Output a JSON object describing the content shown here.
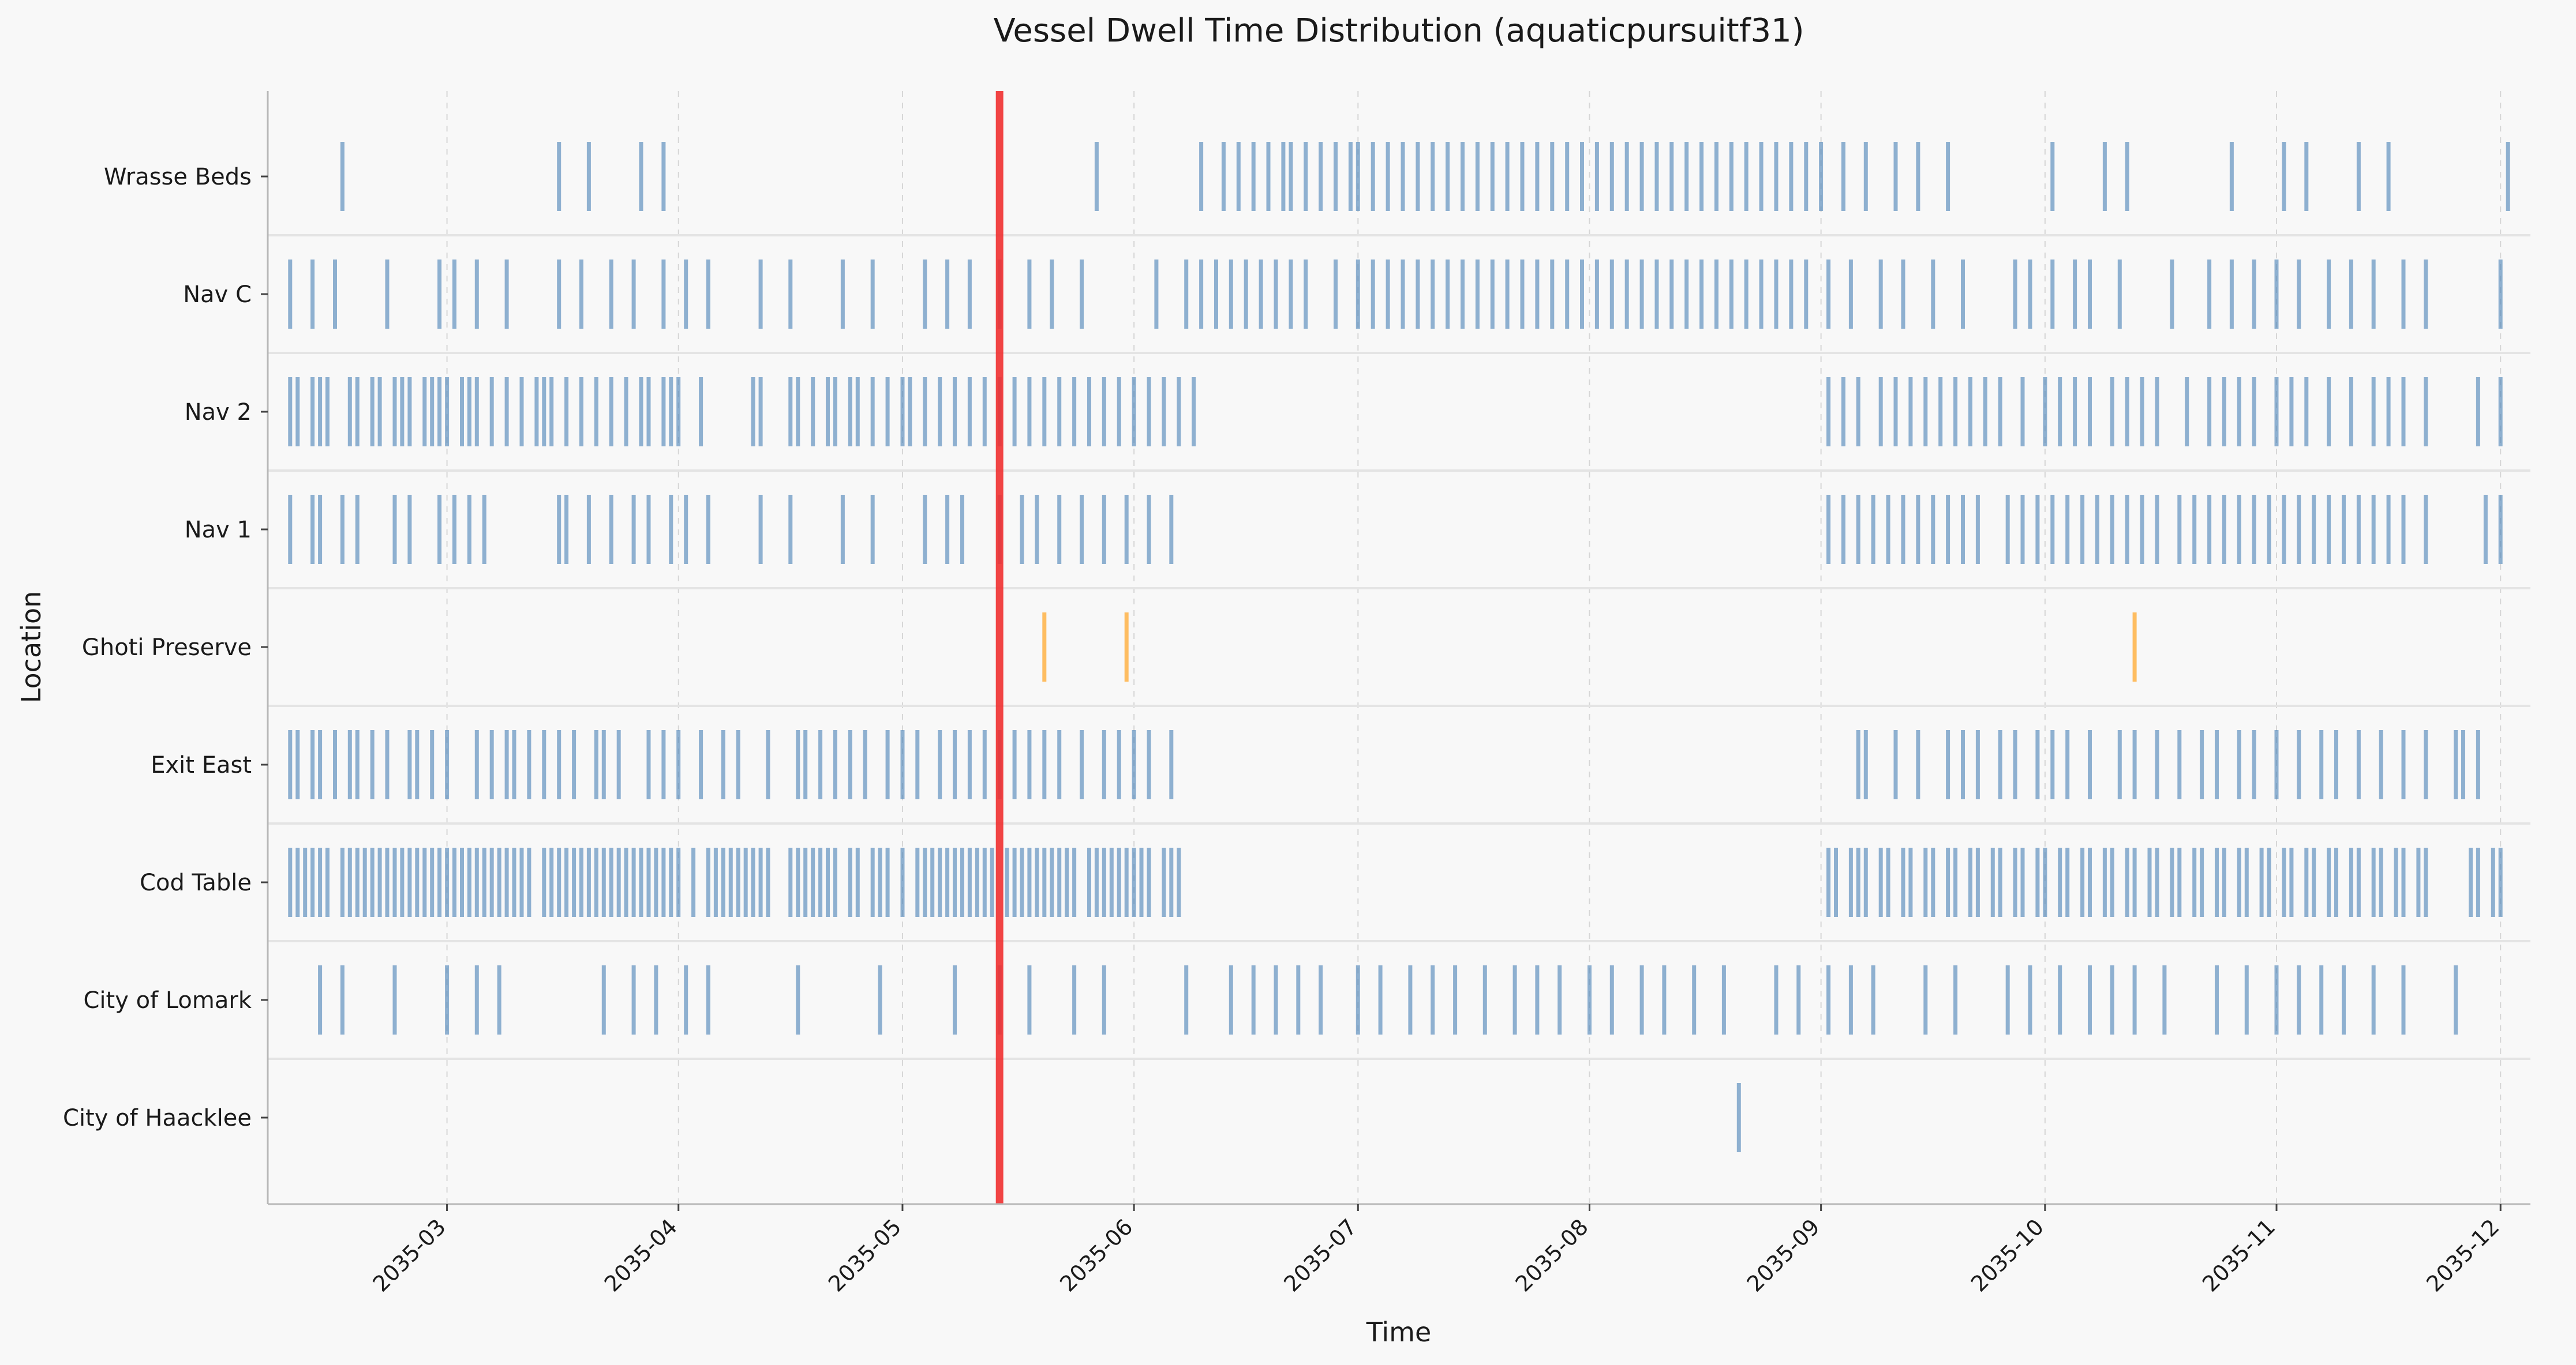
{
  "chart_data": {
    "type": "timeline",
    "title": "Vessel Dwell Time Distribution (aquaticpursuitf31)",
    "xlabel": "Time",
    "ylabel": "Location",
    "x_range": [
      "2035-02-05",
      "2035-12-05"
    ],
    "x_tick_labels": [
      "2035-03",
      "2035-04",
      "2035-05",
      "2035-06",
      "2035-07",
      "2035-08",
      "2035-09",
      "2035-10",
      "2035-11",
      "2035-12"
    ],
    "categories": [
      "Wrasse Beds",
      "Nav C",
      "Nav 2",
      "Nav 1",
      "Ghoti Preserve",
      "Exit East",
      "Cod Table",
      "City of Lomark",
      "City of Haacklee"
    ],
    "grid": "vertical dashed at month ticks",
    "legend": "none",
    "colors": {
      "regular": "#4e84b8",
      "highlight": "#ffb347",
      "marker": "#f03030",
      "background": "#f8f8f8"
    },
    "marker_line": {
      "date": "2035-05-14"
    },
    "series": [
      {
        "category": "Wrasse Beds",
        "color": "regular",
        "visits": [
          "2035-02-15",
          "2035-03-16",
          "2035-03-20",
          "2035-03-27",
          "2035-03-30",
          "2035-05-27",
          "2035-06-10",
          "2035-06-13",
          "2035-06-15",
          "2035-06-17",
          "2035-06-19",
          "2035-06-21",
          "2035-06-22",
          "2035-06-24",
          "2035-06-26",
          "2035-06-28",
          "2035-06-30",
          "2035-07-01",
          "2035-07-03",
          "2035-07-05",
          "2035-07-07",
          "2035-07-09",
          "2035-07-11",
          "2035-07-13",
          "2035-07-15",
          "2035-07-17",
          "2035-07-19",
          "2035-07-21",
          "2035-07-23",
          "2035-07-25",
          "2035-07-27",
          "2035-07-29",
          "2035-07-31",
          "2035-08-02",
          "2035-08-04",
          "2035-08-06",
          "2035-08-08",
          "2035-08-10",
          "2035-08-12",
          "2035-08-14",
          "2035-08-16",
          "2035-08-18",
          "2035-08-20",
          "2035-08-22",
          "2035-08-24",
          "2035-08-26",
          "2035-08-28",
          "2035-08-30",
          "2035-09-01",
          "2035-09-04",
          "2035-09-07",
          "2035-09-11",
          "2035-09-14",
          "2035-09-18",
          "2035-10-02",
          "2035-10-09",
          "2035-10-12",
          "2035-10-26",
          "2035-11-02",
          "2035-11-05",
          "2035-11-12",
          "2035-11-16",
          "2035-12-02"
        ]
      },
      {
        "category": "Nav C",
        "color": "regular",
        "visits": [
          "2035-02-08",
          "2035-02-11",
          "2035-02-14",
          "2035-02-21",
          "2035-02-28",
          "2035-03-02",
          "2035-03-05",
          "2035-03-09",
          "2035-03-16",
          "2035-03-19",
          "2035-03-23",
          "2035-03-26",
          "2035-03-30",
          "2035-04-02",
          "2035-04-05",
          "2035-04-12",
          "2035-04-16",
          "2035-04-23",
          "2035-04-27",
          "2035-05-04",
          "2035-05-07",
          "2035-05-10",
          "2035-05-14",
          "2035-05-18",
          "2035-05-21",
          "2035-05-25",
          "2035-06-04",
          "2035-06-08",
          "2035-06-10",
          "2035-06-12",
          "2035-06-14",
          "2035-06-16",
          "2035-06-18",
          "2035-06-20",
          "2035-06-22",
          "2035-06-24",
          "2035-06-28",
          "2035-07-01",
          "2035-07-03",
          "2035-07-05",
          "2035-07-07",
          "2035-07-09",
          "2035-07-11",
          "2035-07-13",
          "2035-07-15",
          "2035-07-17",
          "2035-07-19",
          "2035-07-21",
          "2035-07-23",
          "2035-07-25",
          "2035-07-27",
          "2035-07-29",
          "2035-07-31",
          "2035-08-02",
          "2035-08-04",
          "2035-08-06",
          "2035-08-08",
          "2035-08-10",
          "2035-08-12",
          "2035-08-14",
          "2035-08-16",
          "2035-08-18",
          "2035-08-20",
          "2035-08-22",
          "2035-08-24",
          "2035-08-26",
          "2035-08-28",
          "2035-08-30",
          "2035-09-02",
          "2035-09-05",
          "2035-09-09",
          "2035-09-12",
          "2035-09-16",
          "2035-09-20",
          "2035-09-27",
          "2035-09-29",
          "2035-10-02",
          "2035-10-05",
          "2035-10-07",
          "2035-10-11",
          "2035-10-18",
          "2035-10-23",
          "2035-10-26",
          "2035-10-29",
          "2035-11-01",
          "2035-11-04",
          "2035-11-08",
          "2035-11-11",
          "2035-11-14",
          "2035-11-18",
          "2035-11-21",
          "2035-12-01"
        ]
      },
      {
        "category": "Nav 2",
        "color": "regular",
        "visits": [
          "2035-02-08",
          "2035-02-09",
          "2035-02-11",
          "2035-02-12",
          "2035-02-13",
          "2035-02-16",
          "2035-02-17",
          "2035-02-19",
          "2035-02-20",
          "2035-02-22",
          "2035-02-23",
          "2035-02-24",
          "2035-02-26",
          "2035-02-27",
          "2035-02-28",
          "2035-03-01",
          "2035-03-03",
          "2035-03-04",
          "2035-03-05",
          "2035-03-07",
          "2035-03-09",
          "2035-03-11",
          "2035-03-13",
          "2035-03-14",
          "2035-03-15",
          "2035-03-17",
          "2035-03-19",
          "2035-03-21",
          "2035-03-23",
          "2035-03-25",
          "2035-03-27",
          "2035-03-28",
          "2035-03-30",
          "2035-03-31",
          "2035-04-01",
          "2035-04-04",
          "2035-04-11",
          "2035-04-12",
          "2035-04-16",
          "2035-04-17",
          "2035-04-19",
          "2035-04-21",
          "2035-04-22",
          "2035-04-24",
          "2035-04-25",
          "2035-04-27",
          "2035-04-29",
          "2035-05-01",
          "2035-05-02",
          "2035-05-04",
          "2035-05-06",
          "2035-05-08",
          "2035-05-10",
          "2035-05-12",
          "2035-05-14",
          "2035-05-16",
          "2035-05-18",
          "2035-05-20",
          "2035-05-22",
          "2035-05-24",
          "2035-05-26",
          "2035-05-28",
          "2035-05-30",
          "2035-06-01",
          "2035-06-03",
          "2035-06-05",
          "2035-06-07",
          "2035-06-09",
          "2035-09-02",
          "2035-09-04",
          "2035-09-06",
          "2035-09-09",
          "2035-09-11",
          "2035-09-13",
          "2035-09-15",
          "2035-09-17",
          "2035-09-19",
          "2035-09-21",
          "2035-09-23",
          "2035-09-25",
          "2035-09-28",
          "2035-10-01",
          "2035-10-03",
          "2035-10-05",
          "2035-10-07",
          "2035-10-10",
          "2035-10-12",
          "2035-10-14",
          "2035-10-16",
          "2035-10-20",
          "2035-10-23",
          "2035-10-25",
          "2035-10-27",
          "2035-10-29",
          "2035-11-01",
          "2035-11-03",
          "2035-11-05",
          "2035-11-08",
          "2035-11-11",
          "2035-11-14",
          "2035-11-16",
          "2035-11-18",
          "2035-11-21",
          "2035-11-28",
          "2035-12-01"
        ]
      },
      {
        "category": "Nav 1",
        "color": "regular",
        "visits": [
          "2035-02-08",
          "2035-02-11",
          "2035-02-12",
          "2035-02-15",
          "2035-02-17",
          "2035-02-22",
          "2035-02-24",
          "2035-02-28",
          "2035-03-02",
          "2035-03-04",
          "2035-03-06",
          "2035-03-16",
          "2035-03-17",
          "2035-03-20",
          "2035-03-23",
          "2035-03-26",
          "2035-03-28",
          "2035-03-31",
          "2035-04-02",
          "2035-04-05",
          "2035-04-12",
          "2035-04-16",
          "2035-04-23",
          "2035-04-27",
          "2035-05-04",
          "2035-05-07",
          "2035-05-09",
          "2035-05-14",
          "2035-05-17",
          "2035-05-19",
          "2035-05-22",
          "2035-05-25",
          "2035-05-28",
          "2035-05-31",
          "2035-06-03",
          "2035-06-06",
          "2035-09-02",
          "2035-09-04",
          "2035-09-06",
          "2035-09-08",
          "2035-09-10",
          "2035-09-12",
          "2035-09-14",
          "2035-09-16",
          "2035-09-18",
          "2035-09-20",
          "2035-09-22",
          "2035-09-26",
          "2035-09-28",
          "2035-09-30",
          "2035-10-02",
          "2035-10-04",
          "2035-10-06",
          "2035-10-08",
          "2035-10-10",
          "2035-10-12",
          "2035-10-14",
          "2035-10-16",
          "2035-10-19",
          "2035-10-21",
          "2035-10-23",
          "2035-10-25",
          "2035-10-27",
          "2035-10-29",
          "2035-10-31",
          "2035-11-02",
          "2035-11-04",
          "2035-11-06",
          "2035-11-08",
          "2035-11-10",
          "2035-11-12",
          "2035-11-14",
          "2035-11-16",
          "2035-11-18",
          "2035-11-21",
          "2035-11-29",
          "2035-12-01"
        ]
      },
      {
        "category": "Ghoti Preserve",
        "color": "highlight",
        "visits": [
          "2035-05-20",
          "2035-05-31",
          "2035-10-13"
        ]
      },
      {
        "category": "Exit East",
        "color": "regular",
        "visits": [
          "2035-02-08",
          "2035-02-09",
          "2035-02-11",
          "2035-02-12",
          "2035-02-14",
          "2035-02-16",
          "2035-02-17",
          "2035-02-19",
          "2035-02-21",
          "2035-02-24",
          "2035-02-25",
          "2035-02-27",
          "2035-03-01",
          "2035-03-05",
          "2035-03-07",
          "2035-03-09",
          "2035-03-10",
          "2035-03-12",
          "2035-03-14",
          "2035-03-16",
          "2035-03-18",
          "2035-03-21",
          "2035-03-22",
          "2035-03-24",
          "2035-03-28",
          "2035-03-30",
          "2035-04-01",
          "2035-04-04",
          "2035-04-07",
          "2035-04-09",
          "2035-04-13",
          "2035-04-17",
          "2035-04-18",
          "2035-04-20",
          "2035-04-22",
          "2035-04-24",
          "2035-04-26",
          "2035-04-29",
          "2035-05-01",
          "2035-05-03",
          "2035-05-06",
          "2035-05-08",
          "2035-05-10",
          "2035-05-12",
          "2035-05-14",
          "2035-05-16",
          "2035-05-18",
          "2035-05-20",
          "2035-05-22",
          "2035-05-25",
          "2035-05-28",
          "2035-05-30",
          "2035-06-01",
          "2035-06-03",
          "2035-06-06",
          "2035-09-06",
          "2035-09-07",
          "2035-09-11",
          "2035-09-14",
          "2035-09-18",
          "2035-09-20",
          "2035-09-22",
          "2035-09-25",
          "2035-09-27",
          "2035-09-30",
          "2035-10-02",
          "2035-10-04",
          "2035-10-07",
          "2035-10-11",
          "2035-10-13",
          "2035-10-16",
          "2035-10-19",
          "2035-10-22",
          "2035-10-24",
          "2035-10-27",
          "2035-10-29",
          "2035-11-01",
          "2035-11-04",
          "2035-11-07",
          "2035-11-09",
          "2035-11-12",
          "2035-11-15",
          "2035-11-18",
          "2035-11-21",
          "2035-11-25",
          "2035-11-26",
          "2035-11-28"
        ]
      },
      {
        "category": "Cod Table",
        "color": "regular",
        "visits": [
          "2035-02-08",
          "2035-02-09",
          "2035-02-10",
          "2035-02-11",
          "2035-02-12",
          "2035-02-13",
          "2035-02-15",
          "2035-02-16",
          "2035-02-17",
          "2035-02-18",
          "2035-02-19",
          "2035-02-20",
          "2035-02-21",
          "2035-02-22",
          "2035-02-23",
          "2035-02-24",
          "2035-02-25",
          "2035-02-26",
          "2035-02-27",
          "2035-02-28",
          "2035-03-01",
          "2035-03-02",
          "2035-03-03",
          "2035-03-04",
          "2035-03-05",
          "2035-03-06",
          "2035-03-07",
          "2035-03-08",
          "2035-03-09",
          "2035-03-10",
          "2035-03-11",
          "2035-03-12",
          "2035-03-14",
          "2035-03-15",
          "2035-03-16",
          "2035-03-17",
          "2035-03-18",
          "2035-03-19",
          "2035-03-20",
          "2035-03-21",
          "2035-03-22",
          "2035-03-23",
          "2035-03-24",
          "2035-03-25",
          "2035-03-26",
          "2035-03-27",
          "2035-03-28",
          "2035-03-29",
          "2035-03-30",
          "2035-03-31",
          "2035-04-01",
          "2035-04-03",
          "2035-04-05",
          "2035-04-06",
          "2035-04-07",
          "2035-04-08",
          "2035-04-09",
          "2035-04-10",
          "2035-04-11",
          "2035-04-12",
          "2035-04-13",
          "2035-04-16",
          "2035-04-17",
          "2035-04-18",
          "2035-04-19",
          "2035-04-20",
          "2035-04-21",
          "2035-04-22",
          "2035-04-24",
          "2035-04-25",
          "2035-04-27",
          "2035-04-28",
          "2035-04-29",
          "2035-05-01",
          "2035-05-03",
          "2035-05-04",
          "2035-05-05",
          "2035-05-06",
          "2035-05-07",
          "2035-05-08",
          "2035-05-09",
          "2035-05-10",
          "2035-05-11",
          "2035-05-12",
          "2035-05-13",
          "2035-05-15",
          "2035-05-16",
          "2035-05-17",
          "2035-05-18",
          "2035-05-19",
          "2035-05-20",
          "2035-05-21",
          "2035-05-22",
          "2035-05-23",
          "2035-05-24",
          "2035-05-26",
          "2035-05-27",
          "2035-05-28",
          "2035-05-29",
          "2035-05-30",
          "2035-05-31",
          "2035-06-01",
          "2035-06-02",
          "2035-06-03",
          "2035-06-05",
          "2035-06-06",
          "2035-06-07",
          "2035-09-02",
          "2035-09-03",
          "2035-09-05",
          "2035-09-06",
          "2035-09-07",
          "2035-09-09",
          "2035-09-10",
          "2035-09-12",
          "2035-09-13",
          "2035-09-15",
          "2035-09-16",
          "2035-09-18",
          "2035-09-19",
          "2035-09-21",
          "2035-09-22",
          "2035-09-24",
          "2035-09-25",
          "2035-09-27",
          "2035-09-28",
          "2035-09-30",
          "2035-10-01",
          "2035-10-03",
          "2035-10-04",
          "2035-10-06",
          "2035-10-07",
          "2035-10-09",
          "2035-10-10",
          "2035-10-12",
          "2035-10-13",
          "2035-10-15",
          "2035-10-16",
          "2035-10-18",
          "2035-10-19",
          "2035-10-21",
          "2035-10-22",
          "2035-10-24",
          "2035-10-25",
          "2035-10-27",
          "2035-10-28",
          "2035-10-30",
          "2035-10-31",
          "2035-11-02",
          "2035-11-03",
          "2035-11-05",
          "2035-11-06",
          "2035-11-08",
          "2035-11-09",
          "2035-11-11",
          "2035-11-12",
          "2035-11-14",
          "2035-11-15",
          "2035-11-17",
          "2035-11-18",
          "2035-11-20",
          "2035-11-21",
          "2035-11-27",
          "2035-11-28",
          "2035-11-30",
          "2035-12-01"
        ]
      },
      {
        "category": "City of Lomark",
        "color": "regular",
        "visits": [
          "2035-02-12",
          "2035-02-15",
          "2035-02-22",
          "2035-03-01",
          "2035-03-05",
          "2035-03-08",
          "2035-03-22",
          "2035-03-26",
          "2035-03-29",
          "2035-04-02",
          "2035-04-05",
          "2035-04-17",
          "2035-04-28",
          "2035-05-08",
          "2035-05-14",
          "2035-05-18",
          "2035-05-24",
          "2035-05-28",
          "2035-06-08",
          "2035-06-14",
          "2035-06-17",
          "2035-06-20",
          "2035-06-23",
          "2035-06-26",
          "2035-07-01",
          "2035-07-04",
          "2035-07-08",
          "2035-07-11",
          "2035-07-14",
          "2035-07-18",
          "2035-07-22",
          "2035-07-25",
          "2035-07-28",
          "2035-08-01",
          "2035-08-04",
          "2035-08-08",
          "2035-08-11",
          "2035-08-15",
          "2035-08-19",
          "2035-08-26",
          "2035-08-29",
          "2035-09-02",
          "2035-09-05",
          "2035-09-08",
          "2035-09-15",
          "2035-09-19",
          "2035-09-26",
          "2035-09-29",
          "2035-10-03",
          "2035-10-07",
          "2035-10-10",
          "2035-10-13",
          "2035-10-17",
          "2035-10-24",
          "2035-10-28",
          "2035-11-01",
          "2035-11-04",
          "2035-11-07",
          "2035-11-10",
          "2035-11-14",
          "2035-11-18",
          "2035-11-25"
        ]
      },
      {
        "category": "City of Haacklee",
        "color": "regular",
        "visits": [
          "2035-08-21"
        ]
      }
    ]
  }
}
